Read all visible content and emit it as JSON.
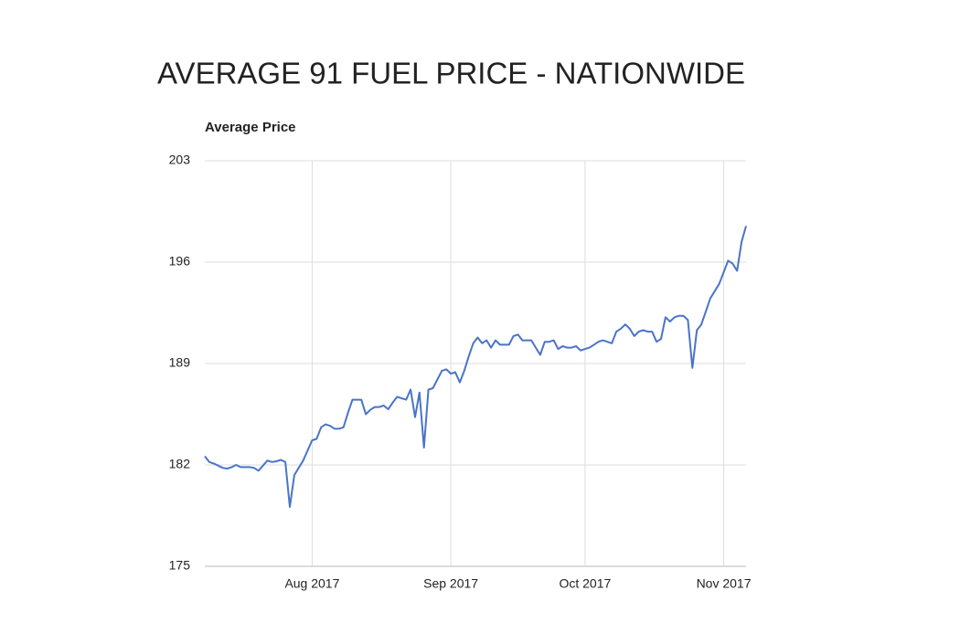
{
  "chart_data": {
    "type": "line",
    "title": "AVERAGE 91 FUEL PRICE - NATIONWIDE",
    "y_label": "Average Price",
    "categories": [
      null,
      null,
      null,
      null,
      null,
      null,
      null,
      null,
      null,
      null,
      null,
      null,
      null,
      null,
      null,
      null,
      null,
      null,
      null,
      null,
      null,
      null,
      null,
      null,
      "Aug 2017",
      null,
      null,
      null,
      null,
      null,
      null,
      null,
      null,
      null,
      null,
      null,
      null,
      null,
      null,
      null,
      null,
      null,
      null,
      null,
      null,
      null,
      null,
      null,
      null,
      null,
      null,
      null,
      null,
      null,
      null,
      "Sep 2017",
      null,
      null,
      null,
      null,
      null,
      null,
      null,
      null,
      null,
      null,
      null,
      null,
      null,
      null,
      null,
      null,
      null,
      null,
      null,
      null,
      null,
      null,
      null,
      null,
      null,
      null,
      null,
      null,
      null,
      "Oct 2017",
      null,
      null,
      null,
      null,
      null,
      null,
      null,
      null,
      null,
      null,
      null,
      null,
      null,
      null,
      null,
      null,
      null,
      null,
      null,
      null,
      null,
      null,
      null,
      null,
      null,
      null,
      null,
      null,
      null,
      null,
      "Nov 2017",
      null,
      null,
      null,
      null,
      null
    ],
    "series": [
      {
        "name": "Average Price",
        "color": "#4a74c8",
        "values": [
          182.6,
          182.2,
          182.1,
          181.95,
          181.8,
          181.75,
          181.85,
          182.0,
          181.85,
          181.85,
          181.85,
          181.8,
          181.6,
          181.95,
          182.3,
          182.2,
          182.25,
          182.35,
          182.2,
          179.1,
          181.3,
          181.8,
          182.3,
          183.0,
          183.7,
          183.8,
          184.6,
          184.8,
          184.7,
          184.5,
          184.5,
          184.6,
          185.6,
          186.5,
          186.5,
          186.5,
          185.5,
          185.8,
          186.0,
          186.0,
          186.1,
          185.85,
          186.3,
          186.7,
          186.6,
          186.5,
          187.2,
          185.3,
          187.0,
          183.2,
          187.2,
          187.3,
          187.9,
          188.5,
          188.6,
          188.3,
          188.4,
          187.7,
          188.5,
          189.5,
          190.4,
          190.8,
          190.4,
          190.6,
          190.1,
          190.6,
          190.3,
          190.3,
          190.3,
          190.9,
          191.0,
          190.6,
          190.6,
          190.6,
          190.1,
          189.6,
          190.5,
          190.5,
          190.6,
          190.0,
          190.2,
          190.1,
          190.1,
          190.2,
          189.9,
          190.0,
          190.1,
          190.3,
          190.5,
          190.6,
          190.5,
          190.4,
          191.2,
          191.4,
          191.7,
          191.4,
          190.9,
          191.2,
          191.3,
          191.2,
          191.2,
          190.5,
          190.7,
          192.2,
          191.9,
          192.2,
          192.3,
          192.3,
          192.0,
          188.7,
          191.3,
          191.7,
          192.6,
          193.5,
          194.0,
          194.5,
          195.3,
          196.1,
          195.9,
          195.4,
          197.4,
          198.5
        ]
      }
    ],
    "ylim": [
      175,
      203
    ],
    "yticks": [
      175,
      182,
      189,
      196,
      203
    ],
    "grid": true
  }
}
